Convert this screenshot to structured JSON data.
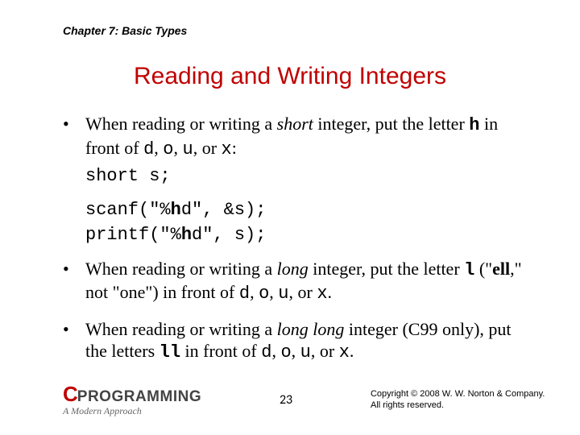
{
  "chapter": "Chapter 7: Basic Types",
  "title": "Reading and Writing Integers",
  "bullet1_pre": "When reading or writing a ",
  "bullet1_em": "short",
  "bullet1_mid": " integer, put the letter ",
  "bullet1_h": "h",
  "bullet1_mid2": " in front of ",
  "bullet1_d": "d",
  "bullet1_c1": ", ",
  "bullet1_o": "o",
  "bullet1_c2": ", ",
  "bullet1_u": "u",
  "bullet1_c3": ", or ",
  "bullet1_x": "x",
  "bullet1_end": ":",
  "code1": "short s;",
  "code2a": "scanf(\"%",
  "code2b": "h",
  "code2c": "d\", &s);",
  "code3a": "printf(\"%",
  "code3b": "h",
  "code3c": "d\", s);",
  "bullet2_pre": "When reading or writing a ",
  "bullet2_em": "long",
  "bullet2_mid": " integer, put the letter ",
  "bullet2_l": "l",
  "bullet2_par": " (\"",
  "bullet2_ell": "ell",
  "bullet2_par2": ",\" not \"one\") in front of ",
  "bullet2_d": "d",
  "bullet2_c1": ", ",
  "bullet2_o": "o",
  "bullet2_c2": ", ",
  "bullet2_u": "u",
  "bullet2_c3": ", or ",
  "bullet2_x": "x",
  "bullet2_end": ".",
  "bullet3_pre": "When reading or writing a ",
  "bullet3_em": "long long",
  "bullet3_mid": " integer (C99 only), put the letters ",
  "bullet3_ll": "ll",
  "bullet3_mid2": " in front of ",
  "bullet3_d": "d",
  "bullet3_c1": ", ",
  "bullet3_o": "o",
  "bullet3_c2": ", ",
  "bullet3_u": "u",
  "bullet3_c3": ", or ",
  "bullet3_x": "x",
  "bullet3_end": ".",
  "logo_c": "C",
  "logo_text": "PROGRAMMING",
  "logo_sub": "A Modern Approach",
  "page_num": "23",
  "copyright1": "Copyright © 2008 W. W. Norton & Company.",
  "copyright2": "All rights reserved.",
  "colors": {
    "title_color": "#c00000",
    "text_color": "#000000",
    "bg": "#ffffff"
  },
  "fonts": {
    "header": "Arial bold italic 14px",
    "title": "Arial 30px",
    "body": "Georgia 22px",
    "mono": "Courier New 22px",
    "copyright": "Arial 11px"
  }
}
